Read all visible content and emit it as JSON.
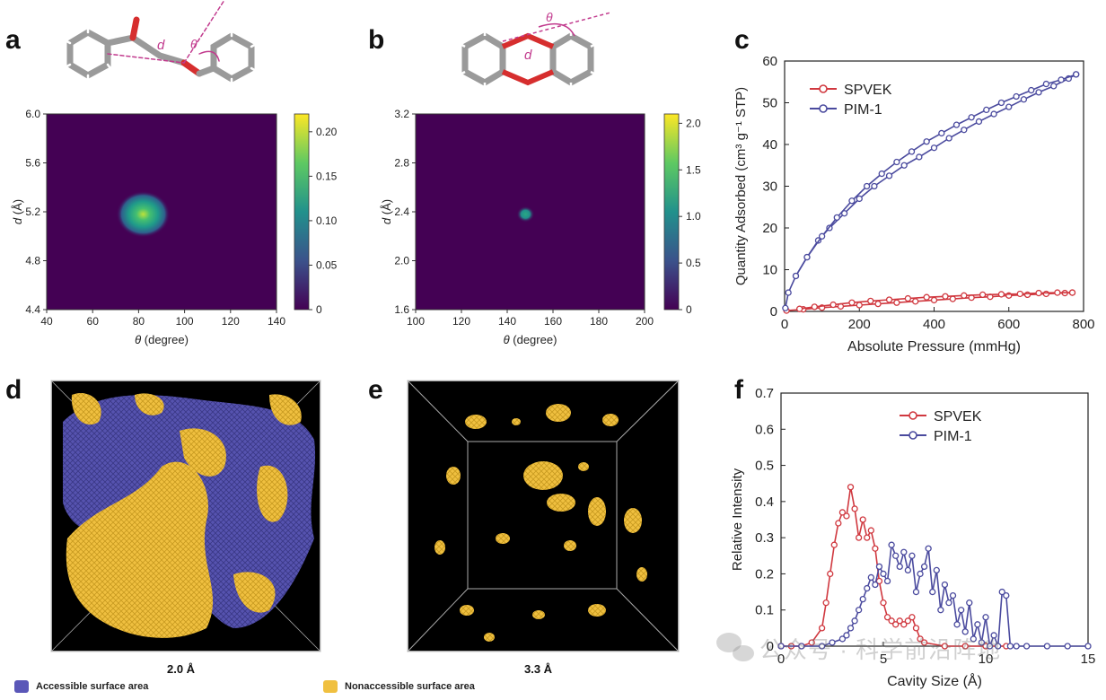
{
  "panels": {
    "a": "a",
    "b": "b",
    "c": "c",
    "d": "d",
    "e": "e",
    "f": "f"
  },
  "molecule_labels": {
    "a_d": "d",
    "a_theta": "θ",
    "b_d": "d",
    "b_theta": "θ"
  },
  "chart_data": [
    {
      "id": "a",
      "type": "heatmap",
      "xlabel_sym": "θ",
      "xlabel_rest": " (degree)",
      "ylabel_sym": "d",
      "ylabel_rest": " (Å)",
      "xlim": [
        40,
        140
      ],
      "ylim": [
        4.4,
        6.0
      ],
      "xticks": [
        "40",
        "60",
        "80",
        "100",
        "120",
        "140"
      ],
      "yticks": [
        "4.4",
        "4.8",
        "5.2",
        "5.6",
        "6.0"
      ],
      "peak": {
        "theta": 82,
        "d": 5.18,
        "value": 0.21
      },
      "colorbar": {
        "min": 0,
        "max": 0.22,
        "ticks": [
          "0",
          "0.05",
          "0.10",
          "0.15",
          "0.20"
        ],
        "tick_values": [
          0,
          0.05,
          0.1,
          0.15,
          0.2
        ]
      }
    },
    {
      "id": "b",
      "type": "heatmap",
      "xlabel_sym": "θ",
      "xlabel_rest": " (degree)",
      "ylabel_sym": "d",
      "ylabel_rest": " (Å)",
      "xlim": [
        100,
        200
      ],
      "ylim": [
        1.6,
        3.2
      ],
      "xticks": [
        "100",
        "120",
        "140",
        "160",
        "180",
        "200"
      ],
      "yticks": [
        "1.6",
        "2.0",
        "2.4",
        "2.8",
        "3.2"
      ],
      "peak": {
        "theta": 148,
        "d": 2.38,
        "value": 1.2
      },
      "colorbar": {
        "min": 0,
        "max": 2.1,
        "ticks": [
          "0",
          "0.5",
          "1.0",
          "1.5",
          "2.0"
        ],
        "tick_values": [
          0,
          0.5,
          1.0,
          1.5,
          2.0
        ]
      }
    },
    {
      "id": "c",
      "type": "line",
      "xlabel": "Absolute Pressure (mmHg)",
      "ylabel": "Quantity Adsorbed (cm³ g⁻¹ STP)",
      "xlim": [
        0,
        800
      ],
      "ylim": [
        0,
        60
      ],
      "xticks": [
        "0",
        "200",
        "400",
        "600",
        "800"
      ],
      "yticks": [
        "0",
        "10",
        "20",
        "30",
        "40",
        "50",
        "60"
      ],
      "series": [
        {
          "name": "SPVEK",
          "color": "#d0383f",
          "adsorption": {
            "x": [
              5,
              50,
              100,
              150,
              200,
              250,
              300,
              350,
              400,
              450,
              500,
              550,
              600,
              650,
              700,
              750,
              770
            ],
            "y": [
              0.2,
              0.5,
              0.9,
              1.2,
              1.5,
              1.8,
              2.1,
              2.4,
              2.7,
              3.0,
              3.3,
              3.5,
              3.8,
              4.0,
              4.2,
              4.4,
              4.5
            ]
          },
          "desorption": {
            "x": [
              770,
              730,
              680,
              630,
              580,
              530,
              480,
              430,
              380,
              330,
              280,
              230,
              180,
              130,
              80,
              40
            ],
            "y": [
              4.5,
              4.5,
              4.4,
              4.2,
              4.1,
              4.0,
              3.8,
              3.6,
              3.4,
              3.1,
              2.8,
              2.5,
              2.1,
              1.6,
              1.1,
              0.6
            ]
          }
        },
        {
          "name": "PIM-1",
          "color": "#4a4a9e",
          "adsorption": {
            "x": [
              2,
              10,
              30,
              60,
              90,
              120,
              160,
              200,
              240,
              280,
              320,
              360,
              400,
              440,
              480,
              520,
              560,
              600,
              640,
              680,
              720,
              760,
              780
            ],
            "y": [
              0.8,
              4.5,
              8.5,
              13,
              17,
              20,
              23.5,
              27,
              30,
              32.5,
              35,
              37,
              39.2,
              41.5,
              43.5,
              45.5,
              47.3,
              49,
              50.8,
              52.5,
              54,
              55.8,
              56.8
            ]
          },
          "desorption": {
            "x": [
              780,
              740,
              700,
              660,
              620,
              580,
              540,
              500,
              460,
              420,
              380,
              340,
              300,
              260,
              220,
              180,
              140,
              100,
              60,
              30
            ],
            "y": [
              56.8,
              55.5,
              54.5,
              53,
              51.5,
              50,
              48.3,
              46.5,
              44.7,
              42.7,
              40.7,
              38.3,
              35.8,
              33,
              30,
              26.5,
              22.5,
              18,
              13,
              8.5
            ]
          }
        }
      ]
    },
    {
      "id": "f",
      "type": "line",
      "xlabel": "Cavity Size (Å)",
      "ylabel": "Relative Intensity",
      "xlim": [
        0,
        15
      ],
      "ylim": [
        0,
        0.7
      ],
      "xticks": [
        "0",
        "5",
        "10",
        "15"
      ],
      "yticks": [
        "0",
        "0.1",
        "0.2",
        "0.3",
        "0.4",
        "0.5",
        "0.6",
        "0.7"
      ],
      "series": [
        {
          "name": "SPVEK",
          "color": "#d0383f",
          "x": [
            0,
            0.5,
            1,
            1.5,
            2,
            2.2,
            2.4,
            2.6,
            2.8,
            3.0,
            3.2,
            3.4,
            3.6,
            3.8,
            4.0,
            4.2,
            4.4,
            4.6,
            4.8,
            5.0,
            5.2,
            5.4,
            5.6,
            5.8,
            6.0,
            6.2,
            6.4,
            6.6,
            6.8,
            7.0,
            8,
            9,
            10,
            11
          ],
          "y": [
            0,
            0,
            0,
            0.01,
            0.05,
            0.12,
            0.2,
            0.28,
            0.34,
            0.37,
            0.36,
            0.44,
            0.38,
            0.3,
            0.35,
            0.3,
            0.32,
            0.27,
            0.18,
            0.12,
            0.08,
            0.07,
            0.06,
            0.07,
            0.06,
            0.07,
            0.08,
            0.05,
            0.02,
            0.01,
            0,
            0,
            0,
            0
          ]
        },
        {
          "name": "PIM-1",
          "color": "#4a4a9e",
          "x": [
            0,
            1,
            2,
            2.5,
            3,
            3.2,
            3.4,
            3.6,
            3.8,
            4.0,
            4.2,
            4.4,
            4.6,
            4.8,
            5.0,
            5.2,
            5.4,
            5.6,
            5.8,
            6.0,
            6.2,
            6.4,
            6.6,
            6.8,
            7.0,
            7.2,
            7.4,
            7.6,
            7.8,
            8.0,
            8.2,
            8.4,
            8.6,
            8.8,
            9.0,
            9.2,
            9.4,
            9.6,
            9.8,
            10.0,
            10.2,
            10.4,
            10.6,
            10.8,
            11.0,
            11.2,
            11.5,
            12,
            13,
            14,
            15
          ],
          "y": [
            0,
            0,
            0,
            0.01,
            0.02,
            0.03,
            0.05,
            0.07,
            0.1,
            0.13,
            0.16,
            0.19,
            0.17,
            0.22,
            0.2,
            0.18,
            0.28,
            0.25,
            0.22,
            0.26,
            0.21,
            0.25,
            0.15,
            0.2,
            0.22,
            0.27,
            0.15,
            0.21,
            0.1,
            0.17,
            0.12,
            0.14,
            0.06,
            0.1,
            0.04,
            0.12,
            0.02,
            0.06,
            0.01,
            0.08,
            0.0,
            0.03,
            0.0,
            0.15,
            0.14,
            0.0,
            0,
            0,
            0,
            0,
            0
          ]
        }
      ]
    }
  ],
  "panel_d": {
    "caption": "2.0 Å"
  },
  "panel_e": {
    "caption": "3.3 Å"
  },
  "legend_bottom": {
    "accessible": "Accessible surface area",
    "accessible_color": "#5a57b8",
    "nonaccessible": "Nonaccessible surface area",
    "nonaccessible_color": "#f0c040"
  },
  "watermark": "公众号 · 科学前沿阵地"
}
